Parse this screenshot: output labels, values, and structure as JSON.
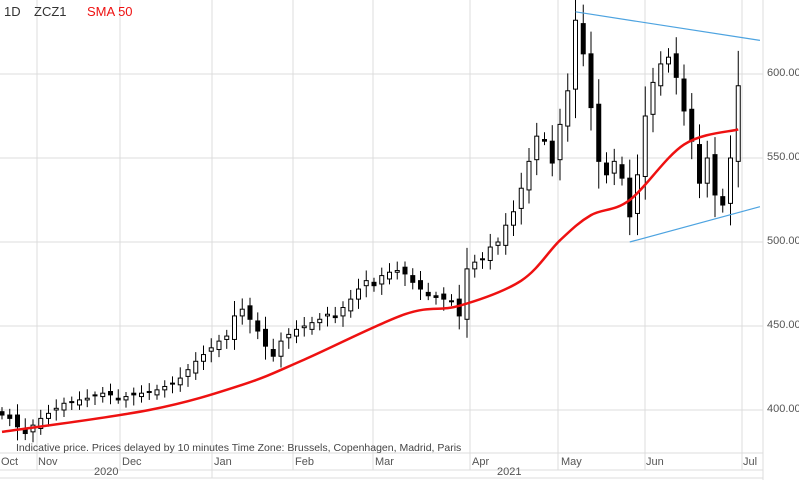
{
  "header": {
    "interval": "1D",
    "symbol": "ZCZ1",
    "indicator": "SMA 50",
    "indicator_color": "#ee1111"
  },
  "note": "Indicative price. Prices delayed by 10 minutes    Time Zone: Brussels, Copenhagen, Madrid, Paris",
  "chart_data": {
    "type": "candlestick",
    "symbol": "ZCZ1",
    "y_ticks": [
      "600.00",
      "550.00",
      "500.00",
      "450.00",
      "400.00"
    ],
    "ylim": [
      376,
      644
    ],
    "x_ticks": [
      "Oct",
      "Nov",
      "Dec",
      "Jan",
      "Feb",
      "Mar",
      "Apr",
      "May",
      "Jun",
      "Jul"
    ],
    "years": [
      "2020",
      "2021"
    ],
    "closes": [
      397,
      395,
      390,
      386,
      391,
      395,
      398,
      401,
      404,
      405,
      406,
      407,
      409,
      410,
      409,
      406,
      408,
      409,
      410,
      411,
      412,
      414,
      416,
      419,
      424,
      429,
      433,
      437,
      441,
      444,
      456,
      460,
      454,
      447,
      438,
      432,
      441,
      445,
      448,
      450,
      452,
      454,
      457,
      455,
      461,
      466,
      472,
      477,
      474,
      480,
      482,
      483,
      481,
      476,
      472,
      468,
      467,
      466,
      465,
      456,
      484,
      488,
      490,
      497,
      500,
      510,
      518,
      532,
      548,
      563,
      560,
      547,
      570,
      590,
      632,
      612,
      580,
      548,
      540,
      548,
      538,
      515,
      540,
      575,
      595,
      606,
      610,
      598,
      578,
      560,
      535,
      550,
      528,
      522,
      550,
      593
    ],
    "sma50": [
      [
        0,
        387
      ],
      [
        19,
        400
      ],
      [
        31,
        415
      ],
      [
        39,
        430
      ],
      [
        52,
        457
      ],
      [
        59,
        462
      ],
      [
        67,
        477
      ],
      [
        72,
        501
      ],
      [
        76,
        516
      ],
      [
        81,
        525
      ],
      [
        88,
        558
      ],
      [
        95,
        567
      ]
    ],
    "trendlines": [
      {
        "from": [
          74,
          637
        ],
        "to": [
          97.8,
          620
        ],
        "color": "#4da3e0"
      },
      {
        "from": [
          81,
          500
        ],
        "to": [
          97.8,
          521
        ],
        "color": "#4da3e0"
      }
    ],
    "grid": true
  }
}
